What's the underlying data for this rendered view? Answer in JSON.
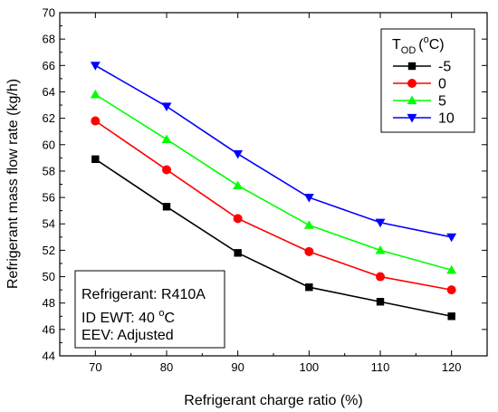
{
  "chart_data": {
    "type": "line",
    "xlabel": "Refrigerant charge ratio (%)",
    "ylabel": "Refrigerant mass flow rate (kg/h)",
    "x": [
      70,
      80,
      90,
      100,
      110,
      120
    ],
    "xlim": [
      65,
      125
    ],
    "ylim": [
      44,
      70
    ],
    "xticks": [
      70,
      80,
      90,
      100,
      110,
      120
    ],
    "yticks": [
      44,
      46,
      48,
      50,
      52,
      54,
      56,
      58,
      60,
      62,
      64,
      66,
      68,
      70
    ],
    "grid": false,
    "legend": {
      "placement": "top-right",
      "title_main": "T",
      "title_sub": "OD",
      "title_paren_open": "(",
      "title_sup": "o",
      "title_unit": "C)"
    },
    "series": [
      {
        "name": "-5",
        "color": "#000000",
        "marker": "square",
        "values": [
          58.9,
          55.3,
          51.8,
          49.2,
          48.1,
          47.0
        ]
      },
      {
        "name": "0",
        "color": "#ff0000",
        "marker": "circle",
        "values": [
          61.8,
          58.1,
          54.4,
          51.9,
          50.0,
          49.0
        ]
      },
      {
        "name": "5",
        "color": "#00ff00",
        "marker": "triangle-up",
        "values": [
          63.8,
          60.4,
          56.9,
          53.9,
          52.0,
          50.5
        ]
      },
      {
        "name": "10",
        "color": "#0000ff",
        "marker": "triangle-down",
        "values": [
          66.0,
          62.9,
          59.3,
          56.0,
          54.1,
          53.0
        ]
      }
    ],
    "annotation": {
      "line1": "Refrigerant: R410A",
      "line2_prefix": "ID EWT: 40 ",
      "line2_sup": "o",
      "line2_suffix": "C",
      "line3": "EEV: Adjusted"
    }
  }
}
